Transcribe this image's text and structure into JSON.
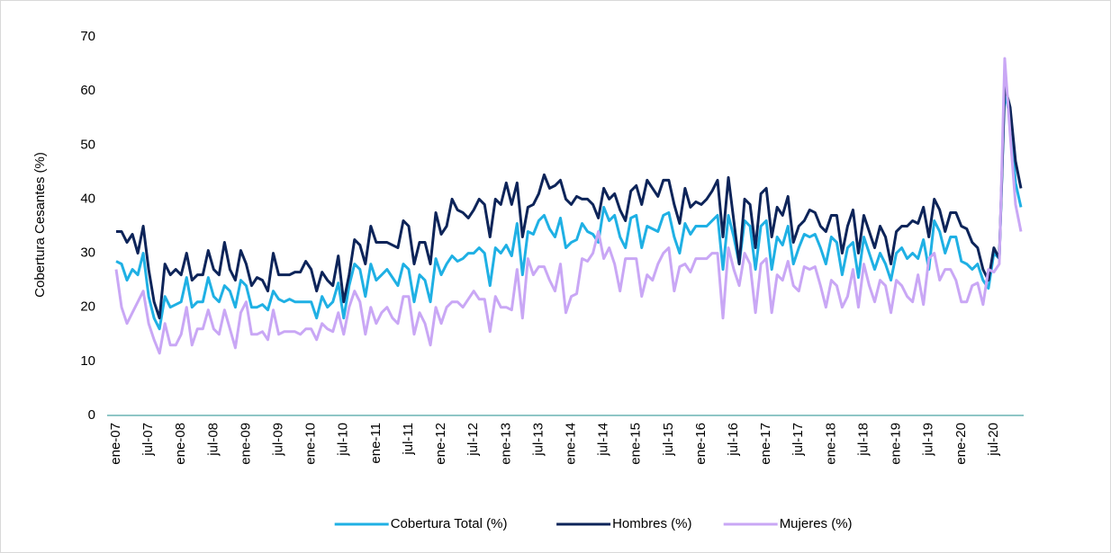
{
  "chart_data": {
    "type": "line",
    "y_label": "Cobertura Cesantes (%)",
    "categories": [
      "ene-07",
      null,
      null,
      null,
      null,
      null,
      "jul-07",
      null,
      null,
      null,
      null,
      null,
      "ene-08",
      null,
      null,
      null,
      null,
      null,
      "jul-08",
      null,
      null,
      null,
      null,
      null,
      "ene-09",
      null,
      null,
      null,
      null,
      null,
      "jul-09",
      null,
      null,
      null,
      null,
      null,
      "ene-10",
      null,
      null,
      null,
      null,
      null,
      "jul-10",
      null,
      null,
      null,
      null,
      null,
      "ene-11",
      null,
      null,
      null,
      null,
      null,
      "jul-11",
      null,
      null,
      null,
      null,
      null,
      "ene-12",
      null,
      null,
      null,
      null,
      null,
      "jul-12",
      null,
      null,
      null,
      null,
      null,
      "ene-13",
      null,
      null,
      null,
      null,
      null,
      "jul-13",
      null,
      null,
      null,
      null,
      null,
      "ene-14",
      null,
      null,
      null,
      null,
      null,
      "jul-14",
      null,
      null,
      null,
      null,
      null,
      "ene-15",
      null,
      null,
      null,
      null,
      null,
      "jul-15",
      null,
      null,
      null,
      null,
      null,
      "ene-16",
      null,
      null,
      null,
      null,
      null,
      "jul-16",
      null,
      null,
      null,
      null,
      null,
      "ene-17",
      null,
      null,
      null,
      null,
      null,
      "jul-17",
      null,
      null,
      null,
      null,
      null,
      "ene-18",
      null,
      null,
      null,
      null,
      null,
      "jul-18",
      null,
      null,
      null,
      null,
      null,
      "ene-19",
      null,
      null,
      null,
      null,
      null,
      "jul-19",
      null,
      null,
      null,
      null,
      null,
      "ene-20",
      null,
      null,
      null,
      null,
      null,
      "jul-20",
      null,
      null,
      null,
      null,
      null
    ],
    "series": [
      {
        "name": "Cobertura Total (%)",
        "color": "#1fb0e4",
        "values": [
          28.5,
          28,
          25,
          27,
          26,
          30,
          22,
          18,
          16,
          22,
          20,
          20.5,
          21,
          25.5,
          20,
          21,
          21,
          25.5,
          22,
          21,
          24,
          23,
          20,
          25,
          24,
          20,
          20,
          20.5,
          19.5,
          23,
          21.5,
          21,
          21.5,
          21,
          21,
          21,
          21,
          18,
          22,
          20,
          21,
          24.5,
          18,
          24,
          28,
          27,
          22,
          28,
          25,
          26,
          27,
          25.5,
          24,
          28,
          27,
          21,
          26,
          25,
          21,
          29,
          26,
          28,
          29.5,
          28.5,
          29,
          30,
          30,
          31,
          30,
          24,
          31,
          30,
          31.5,
          29.5,
          35.5,
          26,
          34,
          33.5,
          36,
          37,
          34.5,
          33,
          36.5,
          31,
          32,
          32.5,
          35.5,
          34,
          33.5,
          32,
          38.5,
          36,
          37,
          33,
          31,
          36.5,
          37,
          31,
          35,
          34.5,
          34,
          37,
          37.5,
          33,
          30,
          35.5,
          33.5,
          35,
          35,
          35,
          36,
          37,
          27,
          37,
          33,
          28,
          36,
          35,
          27,
          35,
          36,
          27,
          33,
          31.5,
          35,
          28,
          31,
          33.5,
          33,
          33.5,
          31,
          28,
          33,
          32,
          26,
          31,
          32,
          25.5,
          33,
          30,
          27,
          30,
          28,
          25,
          30,
          31,
          29,
          30,
          29,
          32.5,
          27,
          36,
          34,
          30,
          33,
          33,
          28.5,
          28,
          27,
          28,
          25,
          23.5,
          30,
          29,
          60,
          55,
          43,
          38.5
        ]
      },
      {
        "name": "Hombres (%)",
        "color": "#0d2459",
        "values": [
          34,
          34,
          32,
          33.5,
          30,
          35,
          27,
          21,
          18,
          28,
          26,
          27,
          26,
          30,
          25,
          26,
          26,
          30.5,
          27,
          26,
          32,
          27,
          25,
          30.5,
          28,
          24,
          25.5,
          25,
          23,
          30,
          26,
          26,
          26,
          26.5,
          26.5,
          28.5,
          27,
          23,
          26.5,
          25,
          24,
          29.5,
          21,
          26,
          32.5,
          31.5,
          28,
          35,
          32,
          32,
          32,
          31.5,
          31,
          36,
          35,
          28,
          32,
          32,
          28,
          37.5,
          33.5,
          35,
          40,
          38,
          37.5,
          36.5,
          38,
          40,
          39,
          33,
          40,
          39,
          43,
          39,
          43,
          33,
          38.5,
          39,
          41,
          44.5,
          42,
          42.5,
          43.5,
          40,
          39,
          40.5,
          40,
          40,
          39,
          36.5,
          42,
          40,
          41,
          38,
          36,
          41.5,
          42.5,
          39,
          43.5,
          42,
          40.5,
          43.5,
          43.5,
          39,
          35.5,
          42,
          38.5,
          39.5,
          39,
          40,
          41.5,
          43.5,
          33,
          44,
          36,
          28,
          40,
          39,
          31,
          41,
          42,
          33,
          38.5,
          37,
          40.5,
          32,
          35,
          36,
          38,
          37.5,
          35,
          34,
          37,
          37,
          30,
          35,
          38,
          30,
          37,
          34,
          31,
          35,
          33,
          28,
          34,
          35,
          35,
          36,
          35.5,
          38.5,
          33,
          40,
          38,
          34,
          37.5,
          37.5,
          35,
          34.5,
          32,
          31,
          27,
          25,
          31,
          29,
          61,
          57,
          47,
          42
        ]
      },
      {
        "name": "Mujeres (%)",
        "color": "#c9a7f5",
        "values": [
          27,
          20,
          17,
          19,
          21,
          23,
          17,
          14,
          11.5,
          17,
          13,
          13,
          15,
          20,
          13,
          16,
          16,
          19.5,
          16,
          15,
          19.5,
          16,
          12.5,
          19,
          21,
          15,
          15,
          15.5,
          14,
          19.5,
          15,
          15.5,
          15.5,
          15.5,
          15,
          16,
          16,
          14,
          17,
          16,
          15.5,
          19,
          15,
          20,
          23,
          21,
          15,
          20,
          17,
          19,
          20,
          18,
          17,
          22,
          22,
          15,
          19,
          17,
          13,
          20,
          17,
          20,
          21,
          21,
          20,
          21.5,
          23,
          21.5,
          21.5,
          15.5,
          22,
          20,
          20,
          19.5,
          27,
          18,
          29,
          26,
          27.5,
          27.5,
          25,
          23,
          28,
          19,
          22,
          22.5,
          29,
          28.5,
          30,
          34,
          29,
          31,
          28,
          23,
          29,
          29,
          29,
          22,
          26,
          25,
          28,
          30,
          31,
          23,
          27.5,
          28,
          26.5,
          29,
          29,
          29,
          30,
          30,
          18,
          31,
          27,
          24,
          30,
          28,
          19,
          28,
          29,
          19,
          26,
          25,
          28.5,
          24,
          23,
          27.5,
          27,
          27.5,
          24,
          20,
          25,
          24,
          20,
          22,
          27,
          20,
          28,
          24,
          21,
          25,
          24,
          19,
          25,
          24,
          22,
          21,
          26,
          20.5,
          29,
          30,
          25,
          27,
          27,
          25,
          21,
          21,
          24,
          24.5,
          20.5,
          27,
          26.5,
          28,
          66,
          52,
          39,
          34
        ]
      }
    ],
    "ylim": [
      0,
      70
    ],
    "yticks": [
      0,
      10,
      20,
      30,
      40,
      50,
      60,
      70
    ],
    "grid": false,
    "legend": "bottom"
  }
}
